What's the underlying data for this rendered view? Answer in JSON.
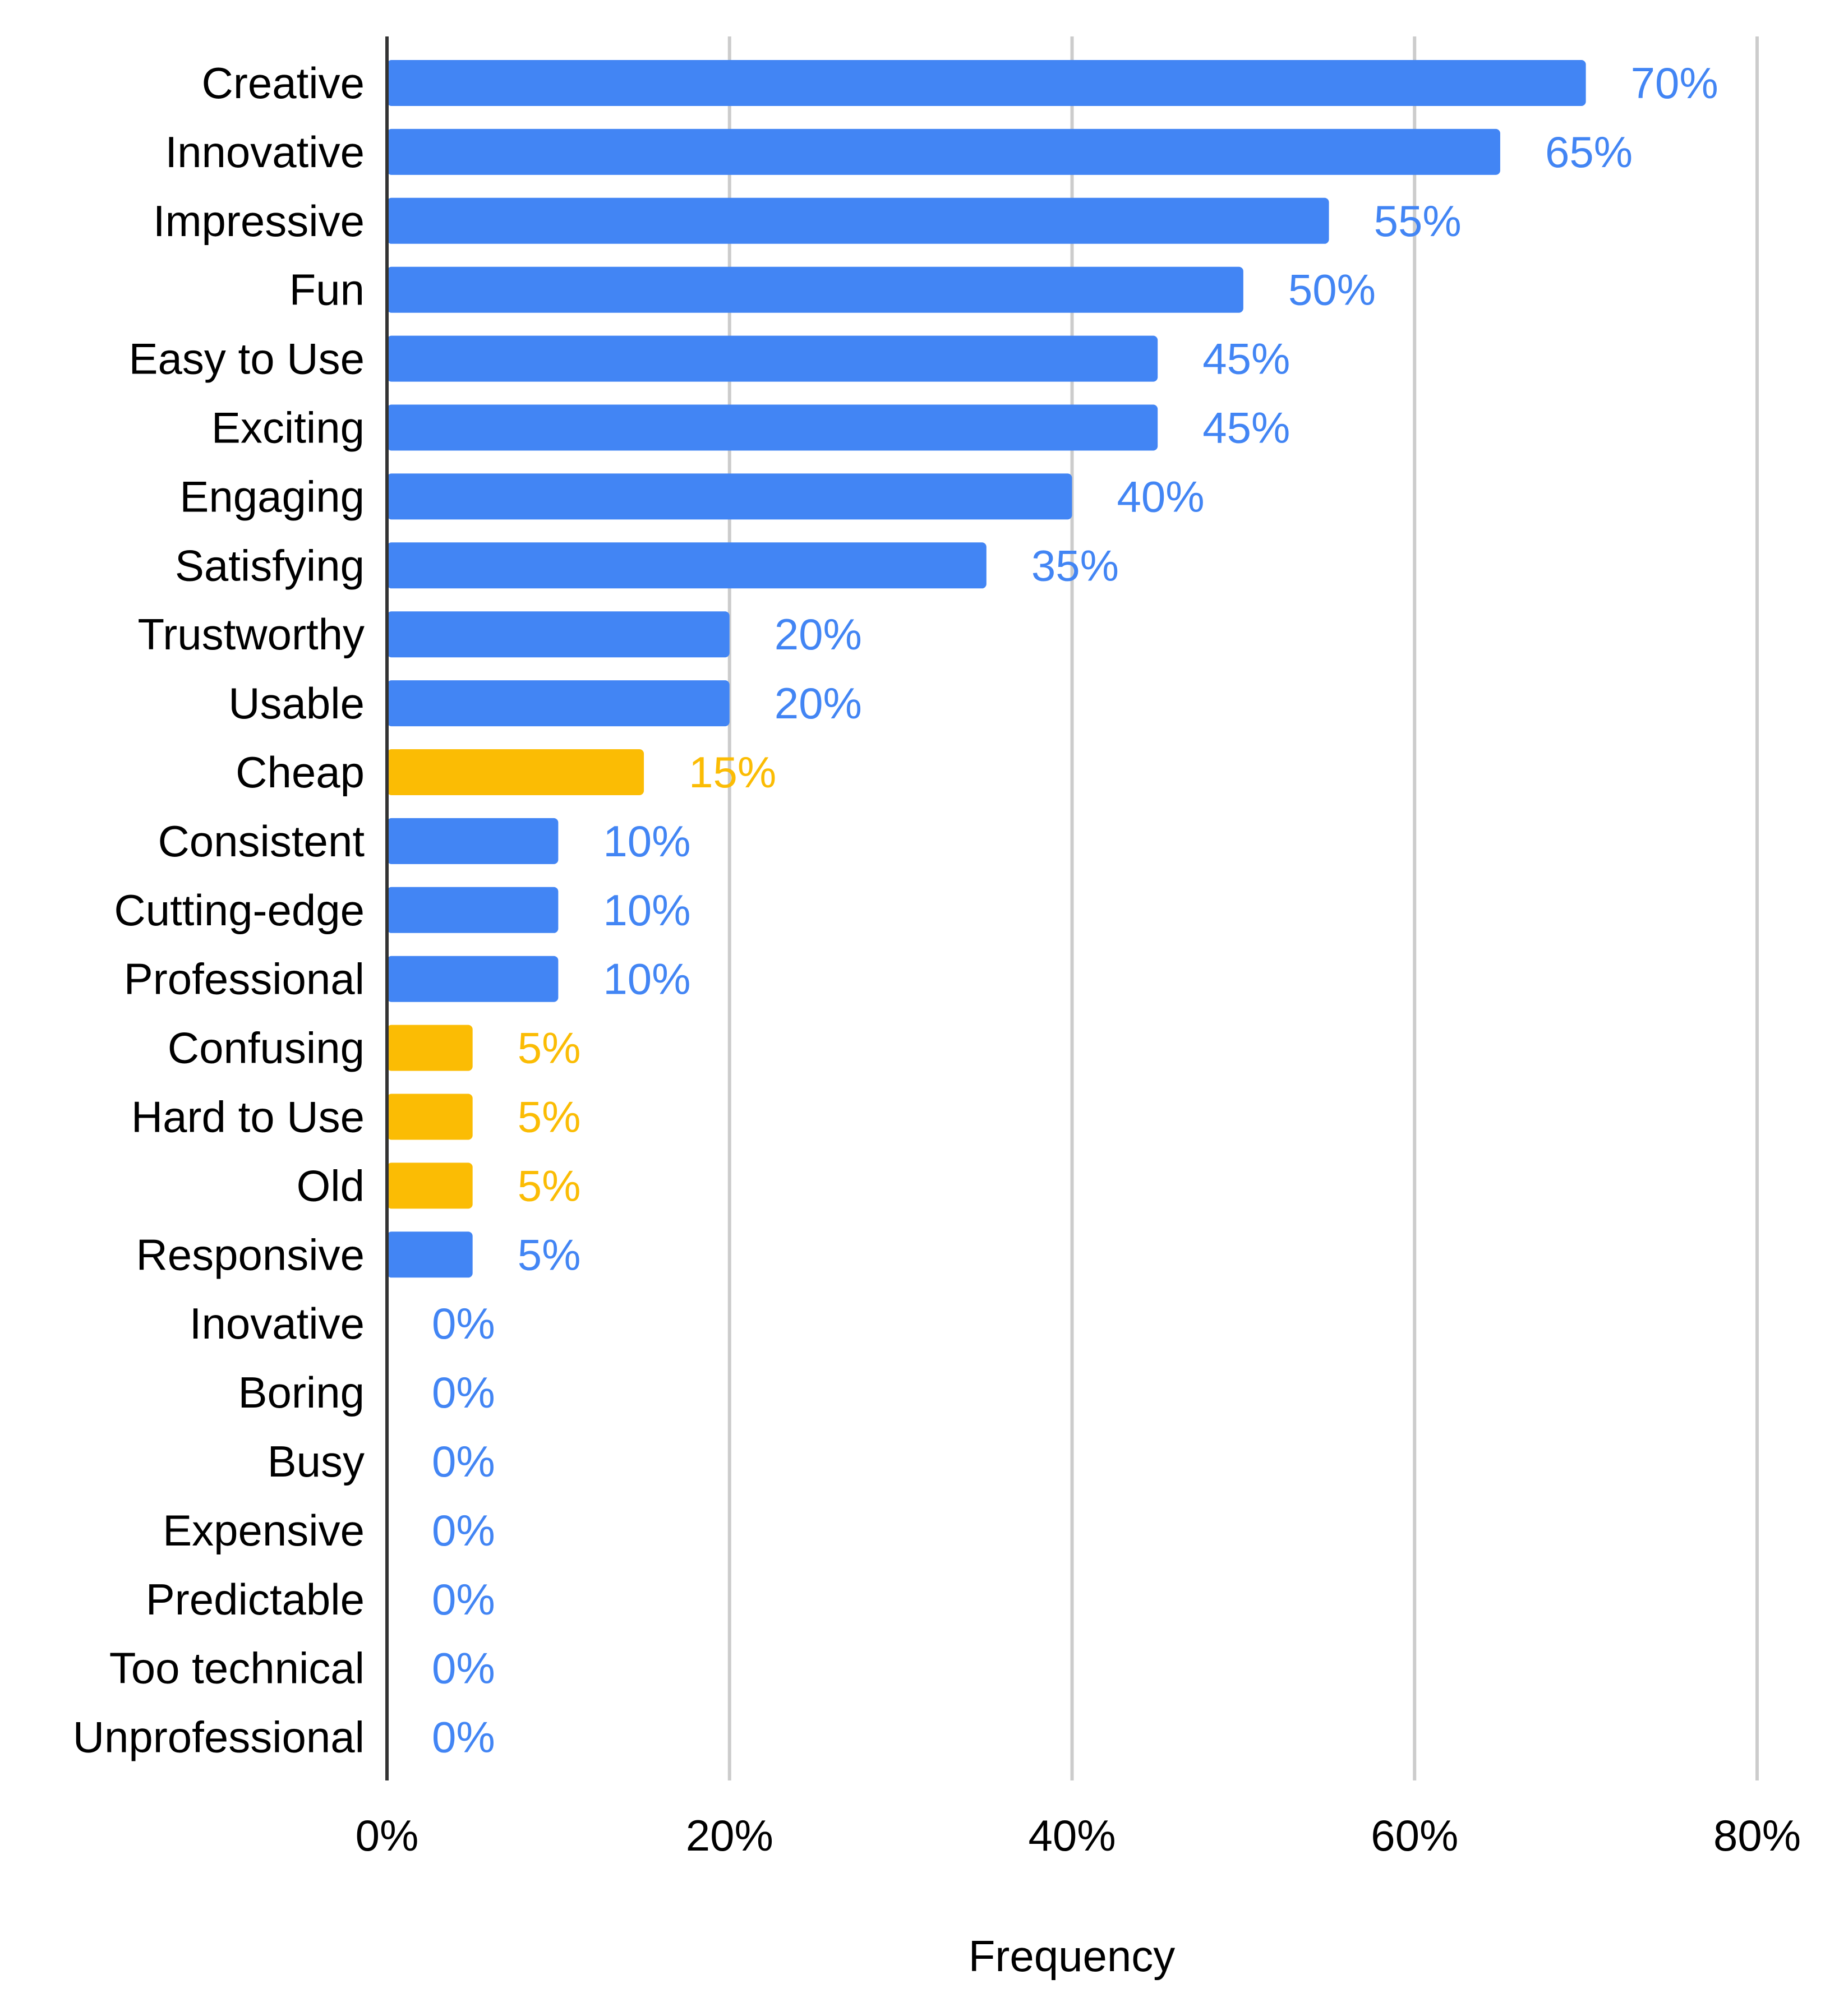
{
  "chart_data": {
    "type": "bar",
    "orientation": "horizontal",
    "title": "",
    "xlabel": "Frequency",
    "ylabel": "",
    "xlim": [
      0,
      80
    ],
    "grid": true,
    "x_ticks": [
      {
        "value": 0,
        "label": "0%"
      },
      {
        "value": 20,
        "label": "20%"
      },
      {
        "value": 40,
        "label": "40%"
      },
      {
        "value": 60,
        "label": "60%"
      },
      {
        "value": 80,
        "label": "80%"
      }
    ],
    "colors": {
      "positive": "#4285F4",
      "negative": "#FBBC04"
    },
    "bars": [
      {
        "category": "Creative",
        "value": 70,
        "label": "70%",
        "sentiment": "positive"
      },
      {
        "category": "Innovative",
        "value": 65,
        "label": "65%",
        "sentiment": "positive"
      },
      {
        "category": "Impressive",
        "value": 55,
        "label": "55%",
        "sentiment": "positive"
      },
      {
        "category": "Fun",
        "value": 50,
        "label": "50%",
        "sentiment": "positive"
      },
      {
        "category": "Easy to Use",
        "value": 45,
        "label": "45%",
        "sentiment": "positive"
      },
      {
        "category": "Exciting",
        "value": 45,
        "label": "45%",
        "sentiment": "positive"
      },
      {
        "category": "Engaging",
        "value": 40,
        "label": "40%",
        "sentiment": "positive"
      },
      {
        "category": "Satisfying",
        "value": 35,
        "label": "35%",
        "sentiment": "positive"
      },
      {
        "category": "Trustworthy",
        "value": 20,
        "label": "20%",
        "sentiment": "positive"
      },
      {
        "category": "Usable",
        "value": 20,
        "label": "20%",
        "sentiment": "positive"
      },
      {
        "category": "Cheap",
        "value": 15,
        "label": "15%",
        "sentiment": "negative"
      },
      {
        "category": "Consistent",
        "value": 10,
        "label": "10%",
        "sentiment": "positive"
      },
      {
        "category": "Cutting-edge",
        "value": 10,
        "label": "10%",
        "sentiment": "positive"
      },
      {
        "category": "Professional",
        "value": 10,
        "label": "10%",
        "sentiment": "positive"
      },
      {
        "category": "Confusing",
        "value": 5,
        "label": "5%",
        "sentiment": "negative"
      },
      {
        "category": "Hard to Use",
        "value": 5,
        "label": "5%",
        "sentiment": "negative"
      },
      {
        "category": "Old",
        "value": 5,
        "label": "5%",
        "sentiment": "negative"
      },
      {
        "category": "Responsive",
        "value": 5,
        "label": "5%",
        "sentiment": "positive"
      },
      {
        "category": "Inovative",
        "value": 0,
        "label": "0%",
        "sentiment": "positive"
      },
      {
        "category": "Boring",
        "value": 0,
        "label": "0%",
        "sentiment": "positive"
      },
      {
        "category": "Busy",
        "value": 0,
        "label": "0%",
        "sentiment": "positive"
      },
      {
        "category": "Expensive",
        "value": 0,
        "label": "0%",
        "sentiment": "positive"
      },
      {
        "category": "Predictable",
        "value": 0,
        "label": "0%",
        "sentiment": "positive"
      },
      {
        "category": "Too technical",
        "value": 0,
        "label": "0%",
        "sentiment": "positive"
      },
      {
        "category": "Unprofessional",
        "value": 0,
        "label": "0%",
        "sentiment": "positive"
      }
    ]
  }
}
